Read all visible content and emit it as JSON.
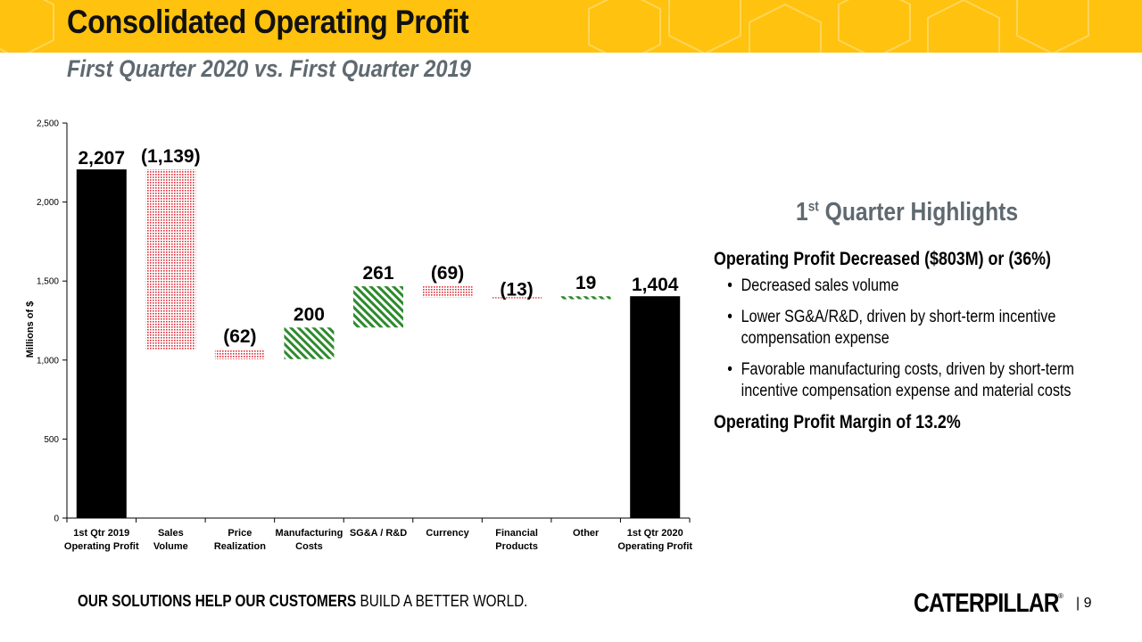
{
  "header": {
    "title": "Consolidated Operating Profit",
    "subtitle": "First Quarter 2020 vs. First Quarter 2019"
  },
  "colors": {
    "banner": "#ffc20e",
    "total_bar": "#000000",
    "decrease": "#e0303a",
    "increase": "#2e8a2e",
    "subtitle_gray": "#5f6970"
  },
  "chart_data": {
    "type": "bar",
    "subtype": "waterfall",
    "ylabel": "Millions of $",
    "ylim": [
      0,
      2500
    ],
    "yticks": [
      0,
      500,
      1000,
      1500,
      2000,
      2500
    ],
    "ytick_labels": [
      "0",
      "500",
      "1,000",
      "1,500",
      "2,000",
      "2,500"
    ],
    "grid": false,
    "categories": [
      [
        "1st Qtr 2019",
        "Operating Profit"
      ],
      [
        "Sales",
        "Volume"
      ],
      [
        "Price",
        "Realization"
      ],
      [
        "Manufacturing",
        "Costs"
      ],
      [
        "SG&A / R&D"
      ],
      [
        "Currency"
      ],
      [
        "Financial",
        "Products"
      ],
      [
        "Other"
      ],
      [
        "1st Qtr 2020",
        "Operating Profit"
      ]
    ],
    "values": [
      2207,
      -1139,
      -62,
      200,
      261,
      -69,
      -13,
      19,
      1404
    ],
    "kinds": [
      "total",
      "change",
      "change",
      "change",
      "change",
      "change",
      "change",
      "change",
      "total"
    ],
    "value_labels": [
      "2,207",
      "(1,139)",
      "(62)",
      "200",
      "261",
      "(69)",
      "(13)",
      "19",
      "1,404"
    ]
  },
  "highlights": {
    "heading_prefix": "1",
    "heading_sup": "st",
    "heading_rest": " Quarter Highlights",
    "main": "Operating Profit Decreased ($803M) or (36%)",
    "bullet": "•",
    "items": [
      "Decreased sales volume",
      "Lower SG&A/R&D, driven by short-term incentive compensation expense",
      "Favorable manufacturing costs, driven by short-term incentive compensation expense and material costs"
    ],
    "footer": "Operating Profit Margin of 13.2%"
  },
  "footer": {
    "tagline_bold": "OUR SOLUTIONS HELP OUR CUSTOMERS",
    "tagline_rest": " BUILD A BETTER WORLD.",
    "logo": "CATERPILLAR",
    "logo_mark": "®",
    "page": "| 9"
  }
}
